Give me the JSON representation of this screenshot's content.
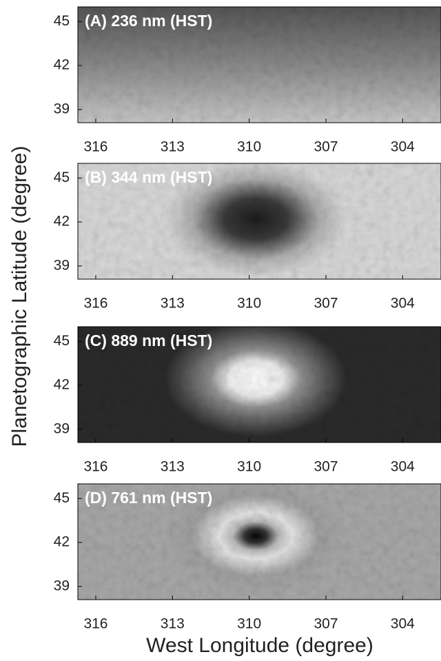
{
  "ylabel": "Planetographic Latitude (degree)",
  "xlabel": "West Longitude (degree)",
  "chart_data": [
    {
      "type": "image",
      "title": "(A) 236 nm (HST)",
      "xlim": [
        316.7,
        302.5
      ],
      "xticks": [
        316,
        313,
        310,
        307,
        304
      ],
      "ylim": [
        38.1,
        46
      ],
      "yticks": [
        39,
        42,
        45
      ]
    },
    {
      "type": "image",
      "title": "(B) 344 nm (HST)",
      "xlim": [
        316.7,
        302.5
      ],
      "xticks": [
        316,
        313,
        310,
        307,
        304
      ],
      "ylim": [
        38.1,
        46
      ],
      "yticks": [
        39,
        42,
        45
      ]
    },
    {
      "type": "image",
      "title": "(C) 889 nm (HST)",
      "xlim": [
        316.7,
        302.5
      ],
      "xticks": [
        316,
        313,
        310,
        307,
        304
      ],
      "ylim": [
        38.1,
        46
      ],
      "yticks": [
        39,
        42,
        45
      ]
    },
    {
      "type": "image",
      "title": "(D) 761 nm (HST)",
      "xlim": [
        316.7,
        302.5
      ],
      "xticks": [
        316,
        313,
        310,
        307,
        304
      ],
      "ylim": [
        38.1,
        46
      ],
      "yticks": [
        39,
        42,
        45
      ]
    }
  ]
}
